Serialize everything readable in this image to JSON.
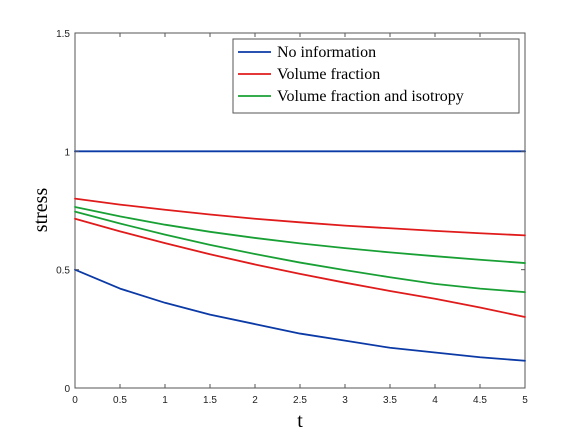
{
  "chart_data": {
    "type": "line",
    "title": "",
    "xlabel": "t",
    "ylabel": "stress",
    "xlim": [
      0,
      5
    ],
    "ylim": [
      0,
      1.5
    ],
    "xticks": [
      0,
      0.5,
      1,
      1.5,
      2,
      2.5,
      3,
      3.5,
      4,
      4.5,
      5
    ],
    "xtick_labels": [
      "0",
      "0.5",
      "1",
      "1.5",
      "2",
      "2.5",
      "3",
      "3.5",
      "4",
      "4.5",
      "5"
    ],
    "yticks": [
      0,
      0.5,
      1,
      1.5
    ],
    "ytick_labels": [
      "0",
      "0.5",
      "1",
      "1.5"
    ],
    "grid": false,
    "legend_position": "top-right",
    "x": [
      0,
      0.5,
      1,
      1.5,
      2,
      2.5,
      3,
      3.5,
      4,
      4.5,
      5
    ],
    "series": [
      {
        "name": "No information",
        "color": "#0b3aa6",
        "values": [
          1,
          1,
          1,
          1,
          1,
          1,
          1,
          1,
          1,
          1,
          1
        ]
      },
      {
        "name": "No information",
        "color": "#0b3aa6",
        "values": [
          0.5,
          0.42,
          0.36,
          0.31,
          0.27,
          0.23,
          0.2,
          0.17,
          0.15,
          0.13,
          0.115
        ]
      },
      {
        "name": "Volume fraction",
        "color": "#e01b1b",
        "values": [
          0.8,
          0.775,
          0.753,
          0.733,
          0.715,
          0.7,
          0.686,
          0.675,
          0.664,
          0.654,
          0.645
        ]
      },
      {
        "name": "Volume fraction",
        "color": "#e01b1b",
        "values": [
          0.715,
          0.662,
          0.612,
          0.565,
          0.522,
          0.482,
          0.445,
          0.41,
          0.377,
          0.34,
          0.3
        ]
      },
      {
        "name": "Volume fraction and isotropy",
        "color": "#19a035",
        "values": [
          0.765,
          0.725,
          0.69,
          0.66,
          0.634,
          0.611,
          0.591,
          0.573,
          0.557,
          0.542,
          0.528
        ]
      },
      {
        "name": "Volume fraction and isotropy",
        "color": "#19a035",
        "values": [
          0.745,
          0.695,
          0.648,
          0.605,
          0.566,
          0.53,
          0.498,
          0.468,
          0.44,
          0.42,
          0.405
        ]
      }
    ],
    "legend": [
      {
        "label": "No information",
        "color": "#0b3aa6"
      },
      {
        "label": "Volume fraction",
        "color": "#e01b1b"
      },
      {
        "label": "Volume fraction and isotropy",
        "color": "#19a035"
      }
    ]
  }
}
